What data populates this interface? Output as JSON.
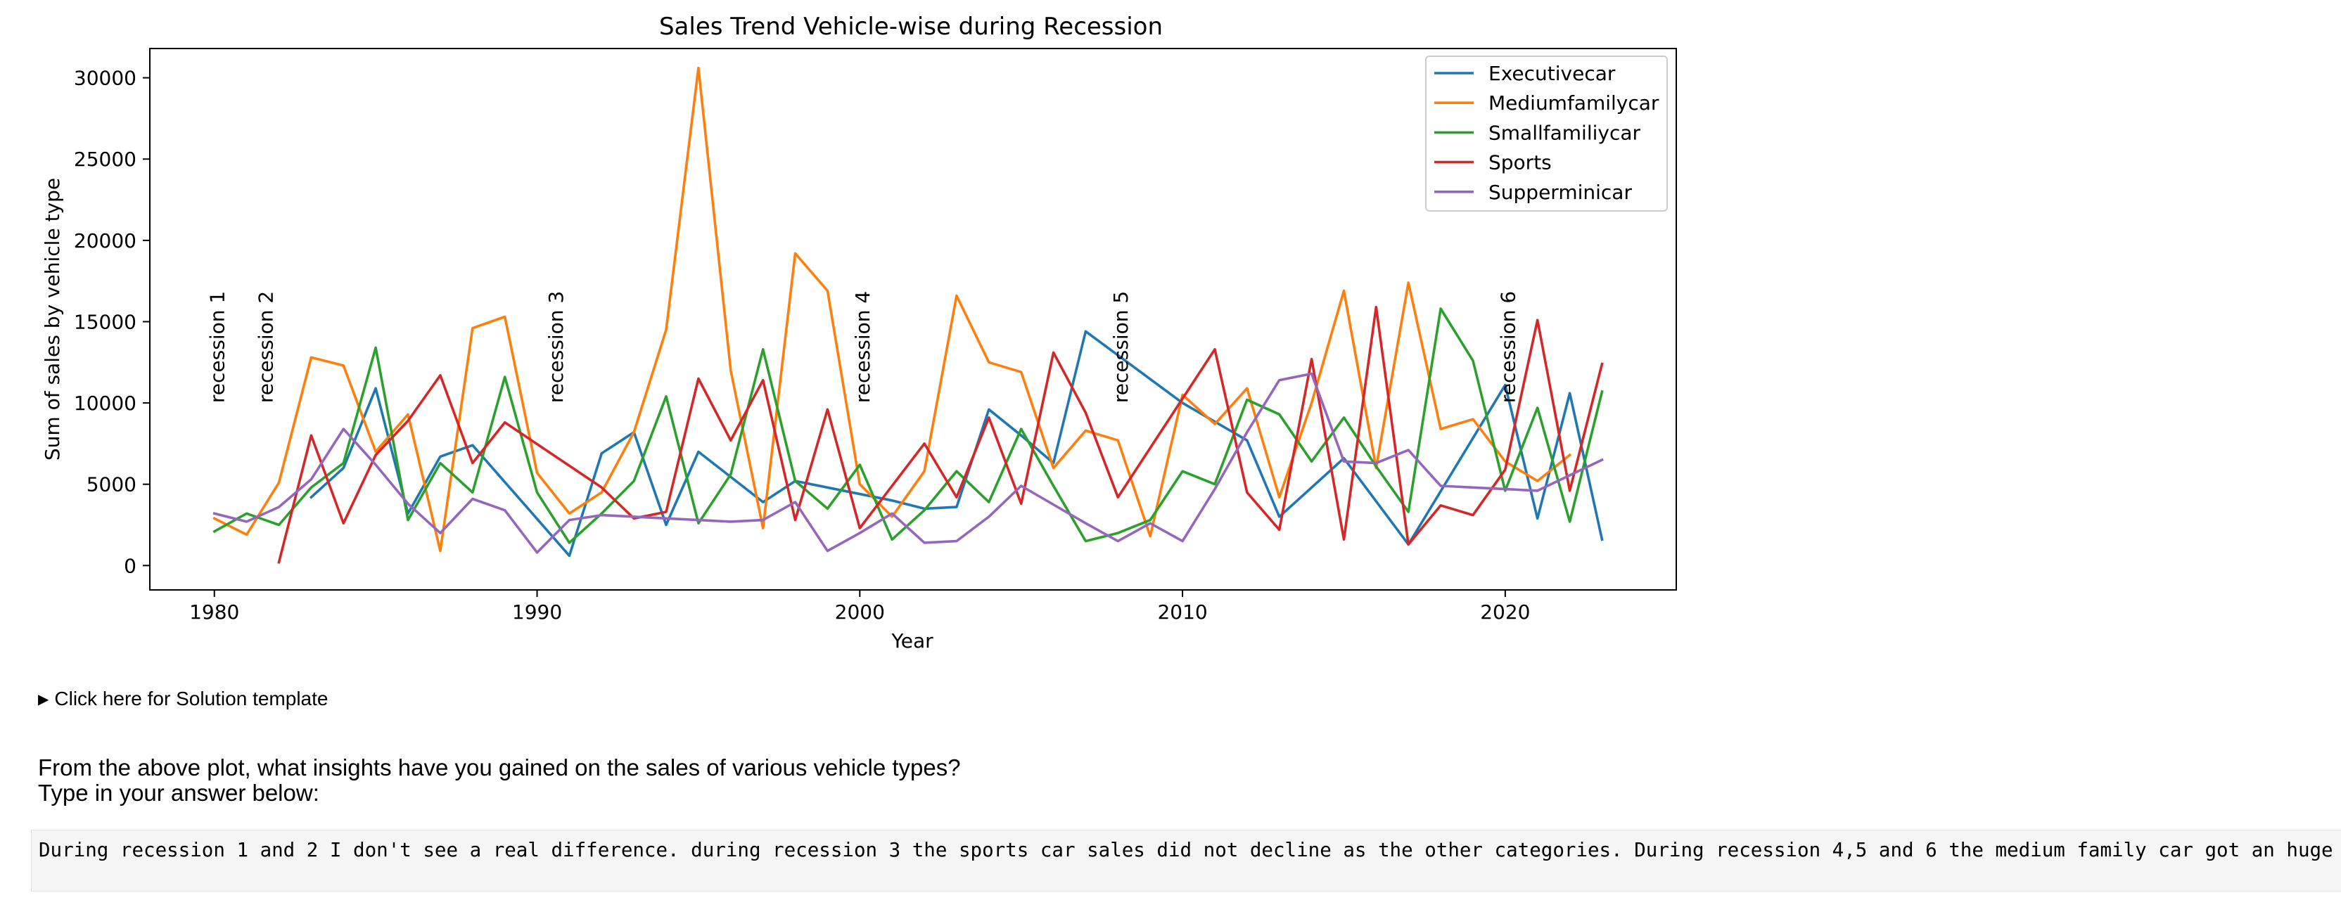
{
  "chart_data": {
    "type": "line",
    "title": "Sales Trend Vehicle-wise during Recession",
    "xlabel": "Year",
    "ylabel": "Sum of sales by vehicle type",
    "xlim": [
      1978,
      2025.3
    ],
    "ylim": [
      -1500,
      31800
    ],
    "xticks": [
      1980,
      1990,
      2000,
      2010,
      2020
    ],
    "yticks": [
      0,
      5000,
      10000,
      15000,
      20000,
      25000,
      30000
    ],
    "grid": false,
    "legend_position": "upper right",
    "series": [
      {
        "name": "Executivecar",
        "color": "#1f77b4",
        "points": [
          [
            1983,
            4200
          ],
          [
            1984,
            6000
          ],
          [
            1985,
            10900
          ],
          [
            1986,
            3200
          ],
          [
            1987,
            6700
          ],
          [
            1988,
            7400
          ],
          [
            1991,
            600
          ],
          [
            1992,
            6900
          ],
          [
            1993,
            8200
          ],
          [
            1994,
            2500
          ],
          [
            1995,
            7000
          ],
          [
            1997,
            3900
          ],
          [
            1998,
            5200
          ],
          [
            2001,
            4000
          ],
          [
            2002,
            3500
          ],
          [
            2003,
            3600
          ],
          [
            2004,
            9600
          ],
          [
            2005,
            8000
          ],
          [
            2006,
            6300
          ],
          [
            2007,
            14400
          ],
          [
            2010,
            10000
          ],
          [
            2012,
            7700
          ],
          [
            2013,
            3000
          ],
          [
            2015,
            6600
          ],
          [
            2017,
            1300
          ],
          [
            2020,
            11100
          ],
          [
            2021,
            2900
          ],
          [
            2022,
            10600
          ],
          [
            2023,
            1600
          ]
        ]
      },
      {
        "name": "Mediumfamilycar",
        "color": "#ff7f0e",
        "points": [
          [
            1980,
            2900
          ],
          [
            1981,
            1900
          ],
          [
            1982,
            5100
          ],
          [
            1983,
            12800
          ],
          [
            1984,
            12300
          ],
          [
            1985,
            7000
          ],
          [
            1986,
            9300
          ],
          [
            1987,
            900
          ],
          [
            1988,
            14600
          ],
          [
            1989,
            15300
          ],
          [
            1990,
            5700
          ],
          [
            1991,
            3200
          ],
          [
            1992,
            4500
          ],
          [
            1993,
            8200
          ],
          [
            1994,
            14500
          ],
          [
            1995,
            30600
          ],
          [
            1996,
            12000
          ],
          [
            1997,
            2300
          ],
          [
            1998,
            19200
          ],
          [
            1999,
            16900
          ],
          [
            2000,
            5000
          ],
          [
            2001,
            3000
          ],
          [
            2002,
            5800
          ],
          [
            2003,
            16600
          ],
          [
            2004,
            12500
          ],
          [
            2005,
            11900
          ],
          [
            2006,
            6000
          ],
          [
            2007,
            8300
          ],
          [
            2008,
            7700
          ],
          [
            2009,
            1800
          ],
          [
            2010,
            10500
          ],
          [
            2011,
            8700
          ],
          [
            2012,
            10900
          ],
          [
            2013,
            4200
          ],
          [
            2014,
            10000
          ],
          [
            2015,
            16900
          ],
          [
            2016,
            6000
          ],
          [
            2017,
            17400
          ],
          [
            2018,
            8400
          ],
          [
            2019,
            9000
          ],
          [
            2020,
            6400
          ],
          [
            2021,
            5200
          ],
          [
            2022,
            6800
          ]
        ]
      },
      {
        "name": "Smallfamiliycar",
        "color": "#2ca02c",
        "points": [
          [
            1980,
            2100
          ],
          [
            1981,
            3200
          ],
          [
            1982,
            2500
          ],
          [
            1983,
            4800
          ],
          [
            1984,
            6300
          ],
          [
            1985,
            13400
          ],
          [
            1986,
            2800
          ],
          [
            1987,
            6300
          ],
          [
            1988,
            4500
          ],
          [
            1989,
            11600
          ],
          [
            1990,
            4500
          ],
          [
            1991,
            1400
          ],
          [
            1992,
            3200
          ],
          [
            1993,
            5200
          ],
          [
            1994,
            10400
          ],
          [
            1995,
            2600
          ],
          [
            1996,
            5600
          ],
          [
            1997,
            13300
          ],
          [
            1998,
            5200
          ],
          [
            1999,
            3500
          ],
          [
            2000,
            6200
          ],
          [
            2001,
            1600
          ],
          [
            2002,
            3400
          ],
          [
            2003,
            5800
          ],
          [
            2004,
            3900
          ],
          [
            2005,
            8400
          ],
          [
            2006,
            4900
          ],
          [
            2007,
            1500
          ],
          [
            2008,
            2000
          ],
          [
            2009,
            2800
          ],
          [
            2010,
            5800
          ],
          [
            2011,
            5000
          ],
          [
            2012,
            10200
          ],
          [
            2013,
            9300
          ],
          [
            2014,
            6400
          ],
          [
            2015,
            9100
          ],
          [
            2016,
            6100
          ],
          [
            2017,
            3300
          ],
          [
            2018,
            15800
          ],
          [
            2019,
            12600
          ],
          [
            2020,
            4600
          ],
          [
            2021,
            9700
          ],
          [
            2022,
            2700
          ],
          [
            2023,
            10700
          ]
        ]
      },
      {
        "name": "Sports",
        "color": "#d62728",
        "points": [
          [
            1982,
            200
          ],
          [
            1983,
            8000
          ],
          [
            1984,
            2600
          ],
          [
            1985,
            6800
          ],
          [
            1986,
            8900
          ],
          [
            1987,
            11700
          ],
          [
            1988,
            6300
          ],
          [
            1989,
            8800
          ],
          [
            1992,
            4800
          ],
          [
            1993,
            2900
          ],
          [
            1994,
            3300
          ],
          [
            1995,
            11500
          ],
          [
            1996,
            7700
          ],
          [
            1997,
            11400
          ],
          [
            1998,
            2800
          ],
          [
            1999,
            9600
          ],
          [
            2000,
            2300
          ],
          [
            2002,
            7500
          ],
          [
            2003,
            4200
          ],
          [
            2004,
            9100
          ],
          [
            2005,
            3800
          ],
          [
            2006,
            13100
          ],
          [
            2007,
            9400
          ],
          [
            2008,
            4200
          ],
          [
            2011,
            13300
          ],
          [
            2012,
            4500
          ],
          [
            2013,
            2200
          ],
          [
            2014,
            12700
          ],
          [
            2015,
            1600
          ],
          [
            2016,
            15900
          ],
          [
            2017,
            1300
          ],
          [
            2018,
            3700
          ],
          [
            2019,
            3100
          ],
          [
            2020,
            5900
          ],
          [
            2021,
            15100
          ],
          [
            2022,
            4600
          ],
          [
            2023,
            12400
          ]
        ]
      },
      {
        "name": "Supperminicar",
        "color": "#9467bd",
        "points": [
          [
            1980,
            3200
          ],
          [
            1981,
            2700
          ],
          [
            1982,
            3600
          ],
          [
            1983,
            5300
          ],
          [
            1984,
            8400
          ],
          [
            1985,
            6200
          ],
          [
            1986,
            3800
          ],
          [
            1987,
            2000
          ],
          [
            1988,
            4100
          ],
          [
            1989,
            3400
          ],
          [
            1990,
            800
          ],
          [
            1991,
            2800
          ],
          [
            1992,
            3100
          ],
          [
            1993,
            3000
          ],
          [
            1994,
            2900
          ],
          [
            1995,
            2800
          ],
          [
            1996,
            2700
          ],
          [
            1997,
            2800
          ],
          [
            1998,
            3900
          ],
          [
            1999,
            900
          ],
          [
            2000,
            2000
          ],
          [
            2001,
            3200
          ],
          [
            2002,
            1400
          ],
          [
            2003,
            1500
          ],
          [
            2004,
            3000
          ],
          [
            2005,
            4900
          ],
          [
            2007,
            2600
          ],
          [
            2008,
            1500
          ],
          [
            2009,
            2600
          ],
          [
            2010,
            1500
          ],
          [
            2011,
            4700
          ],
          [
            2012,
            8200
          ],
          [
            2013,
            11400
          ],
          [
            2014,
            11800
          ],
          [
            2015,
            6400
          ],
          [
            2016,
            6300
          ],
          [
            2017,
            7100
          ],
          [
            2018,
            4900
          ],
          [
            2019,
            4800
          ],
          [
            2021,
            4600
          ],
          [
            2023,
            6500
          ]
        ]
      }
    ],
    "annotations": [
      {
        "label": "recession 1",
        "x": 1980.3,
        "y": 10000
      },
      {
        "label": "recession 2",
        "x": 1981.8,
        "y": 10000
      },
      {
        "label": "recession 3",
        "x": 1990.8,
        "y": 10000
      },
      {
        "label": "recession 4",
        "x": 2000.3,
        "y": 10000
      },
      {
        "label": "recession 5",
        "x": 2008.3,
        "y": 10000
      },
      {
        "label": "recession 6",
        "x": 2020.3,
        "y": 10000
      }
    ]
  },
  "solution_template": {
    "triangle": "▶",
    "label": "Click here for Solution template"
  },
  "question": {
    "line1": "From the above plot, what insights have you gained on the sales of various vehicle types?",
    "line2": "Type in your answer below:"
  },
  "answer": {
    "text": "During recession 1 and 2 I don't see a real difference. during recession 3 the sports car sales did not decline as the other categories. During recession 4,5 and 6 the medium family car got an huge impact."
  }
}
